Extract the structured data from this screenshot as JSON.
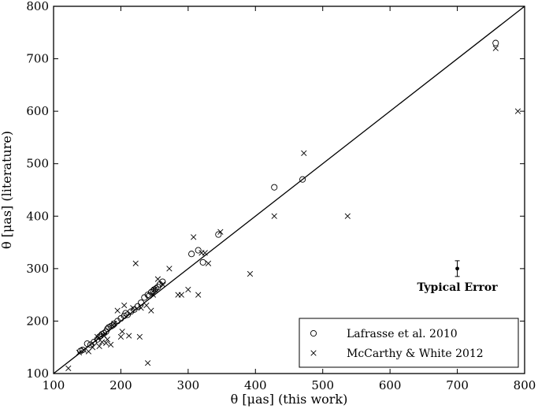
{
  "chart_data": {
    "type": "scatter",
    "xlabel": "θ [μas] (this work)",
    "ylabel": "θ [μas] (literature)",
    "xlim": [
      100,
      800
    ],
    "ylim": [
      100,
      800
    ],
    "xticks": [
      "100",
      "200",
      "300",
      "400",
      "500",
      "600",
      "700",
      "800"
    ],
    "yticks": [
      "100",
      "200",
      "300",
      "400",
      "500",
      "600",
      "700",
      "800"
    ],
    "grid": false,
    "legend_position": "bottom-right",
    "reference_line": "y = x",
    "series": [
      {
        "name": "Lafrasse et al. 2010",
        "marker": "circle",
        "points": [
          [
            140,
            143
          ],
          [
            143,
            145
          ],
          [
            150,
            157
          ],
          [
            155,
            155
          ],
          [
            160,
            160
          ],
          [
            165,
            165
          ],
          [
            168,
            170
          ],
          [
            170,
            172
          ],
          [
            172,
            175
          ],
          [
            175,
            177
          ],
          [
            178,
            180
          ],
          [
            180,
            185
          ],
          [
            182,
            188
          ],
          [
            185,
            190
          ],
          [
            188,
            192
          ],
          [
            190,
            195
          ],
          [
            195,
            200
          ],
          [
            200,
            205
          ],
          [
            205,
            210
          ],
          [
            207,
            215
          ],
          [
            210,
            212
          ],
          [
            215,
            218
          ],
          [
            220,
            222
          ],
          [
            225,
            228
          ],
          [
            230,
            235
          ],
          [
            235,
            245
          ],
          [
            240,
            250
          ],
          [
            242,
            248
          ],
          [
            245,
            255
          ],
          [
            248,
            258
          ],
          [
            250,
            260
          ],
          [
            252,
            262
          ],
          [
            255,
            265
          ],
          [
            258,
            270
          ],
          [
            262,
            275
          ],
          [
            305,
            328
          ],
          [
            315,
            335
          ],
          [
            322,
            312
          ],
          [
            345,
            365
          ],
          [
            428,
            455
          ],
          [
            470,
            470
          ],
          [
            757,
            730
          ]
        ]
      },
      {
        "name": "McCarthy & White 2012",
        "marker": "x",
        "points": [
          [
            122,
            110
          ],
          [
            138,
            140
          ],
          [
            145,
            145
          ],
          [
            152,
            142
          ],
          [
            158,
            150
          ],
          [
            165,
            170
          ],
          [
            168,
            152
          ],
          [
            172,
            160
          ],
          [
            175,
            172
          ],
          [
            178,
            158
          ],
          [
            180,
            165
          ],
          [
            185,
            155
          ],
          [
            190,
            195
          ],
          [
            195,
            220
          ],
          [
            200,
            170
          ],
          [
            202,
            180
          ],
          [
            205,
            230
          ],
          [
            212,
            172
          ],
          [
            218,
            225
          ],
          [
            222,
            310
          ],
          [
            228,
            170
          ],
          [
            230,
            225
          ],
          [
            238,
            230
          ],
          [
            240,
            120
          ],
          [
            245,
            220
          ],
          [
            248,
            250
          ],
          [
            250,
            260
          ],
          [
            255,
            280
          ],
          [
            262,
            270
          ],
          [
            272,
            300
          ],
          [
            285,
            250
          ],
          [
            290,
            250
          ],
          [
            300,
            260
          ],
          [
            308,
            360
          ],
          [
            315,
            250
          ],
          [
            320,
            330
          ],
          [
            325,
            330
          ],
          [
            330,
            310
          ],
          [
            348,
            370
          ],
          [
            392,
            290
          ],
          [
            428,
            400
          ],
          [
            472,
            520
          ],
          [
            537,
            400
          ],
          [
            757,
            720
          ],
          [
            790,
            600
          ]
        ]
      }
    ],
    "typical_error": {
      "x": 700,
      "y": 300,
      "yerr": 15,
      "label": "Typical Error"
    }
  }
}
